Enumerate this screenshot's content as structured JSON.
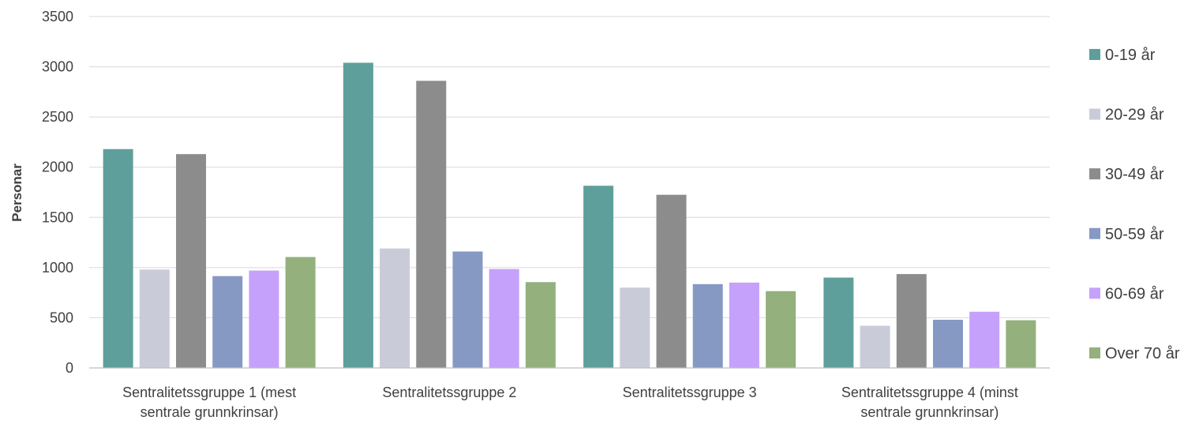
{
  "chart_data": {
    "type": "bar",
    "title": "",
    "xlabel": "",
    "ylabel": "Personar",
    "ylim": [
      0,
      3500
    ],
    "yticks": [
      0,
      500,
      1000,
      1500,
      2000,
      2500,
      3000,
      3500
    ],
    "grid": true,
    "legend_position": "right",
    "categories": [
      [
        "Sentralitetssgruppe 1 (mest",
        "sentrale grunnkrinsar)"
      ],
      [
        "Sentralitetssgruppe 2"
      ],
      [
        "Sentralitetssgruppe 3"
      ],
      [
        "Sentralitetssgruppe 4 (minst",
        "sentrale grunnkrinsar)"
      ]
    ],
    "series": [
      {
        "name": "0-19 år",
        "color": "#5f9f9b",
        "values": [
          2180,
          3040,
          1815,
          900
        ]
      },
      {
        "name": "20-29 år",
        "color": "#c9ccd8",
        "values": [
          980,
          1190,
          800,
          420
        ]
      },
      {
        "name": "30-49 år",
        "color": "#8c8c8c",
        "values": [
          2130,
          2860,
          1725,
          935
        ]
      },
      {
        "name": "50-59 år",
        "color": "#8599c3",
        "values": [
          915,
          1160,
          835,
          480
        ]
      },
      {
        "name": "60-69 år",
        "color": "#c5a1fc",
        "values": [
          970,
          985,
          850,
          560
        ]
      },
      {
        "name": "Over 70 år",
        "color": "#94b07d",
        "values": [
          1105,
          855,
          765,
          475
        ]
      }
    ]
  }
}
